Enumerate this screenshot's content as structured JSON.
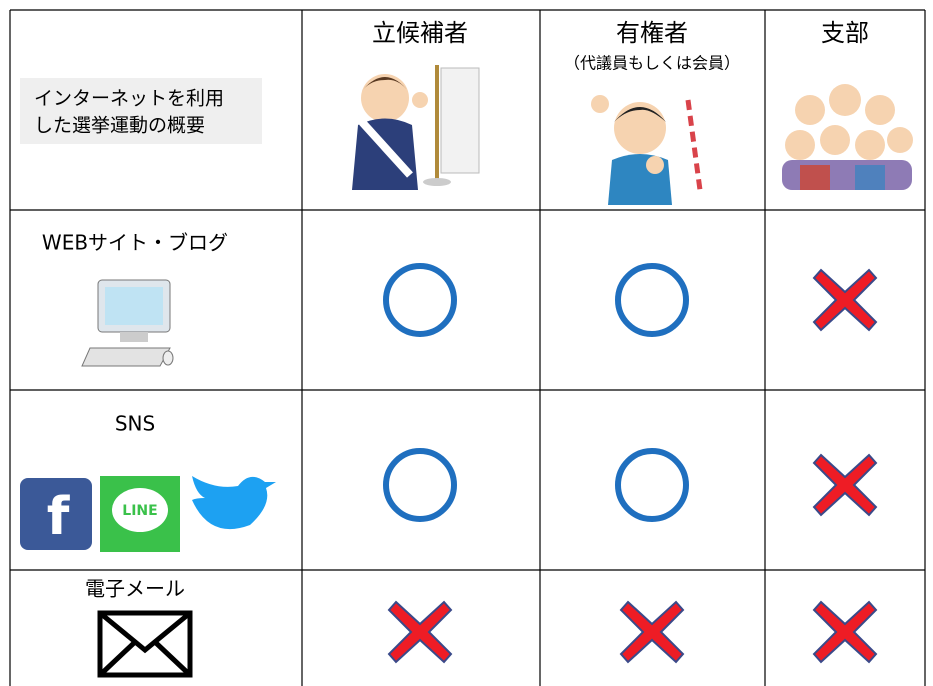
{
  "table": {
    "title_lines": [
      "インターネットを利用",
      "した選挙運動の概要"
    ],
    "columns": [
      {
        "label": "立候補者"
      },
      {
        "label": "有権者",
        "sublabel": "（代議員もしくは会員）"
      },
      {
        "label": "支部"
      }
    ],
    "rows": [
      {
        "label": "WEBサイト・ブログ",
        "allowed": [
          true,
          true,
          false
        ]
      },
      {
        "label": "SNS",
        "icon_texts": [
          "f",
          "LINE"
        ],
        "allowed": [
          true,
          true,
          false
        ]
      },
      {
        "label": "電子メール",
        "allowed": [
          false,
          false,
          false
        ]
      }
    ]
  }
}
